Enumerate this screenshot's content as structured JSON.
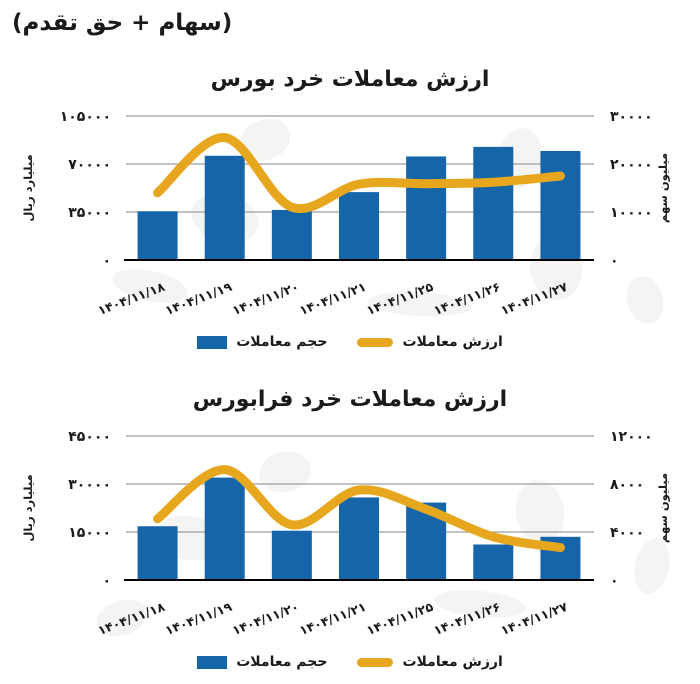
{
  "header": {
    "subtitle": "(سهام + حق تقدم)"
  },
  "legend": {
    "volume_label": "حجم معاملات",
    "value_label": "ارزش معاملات"
  },
  "colors": {
    "bar": "#1565A8",
    "line": "#E6A71E",
    "grid": "#9E9E9E",
    "axis": "#000000",
    "text": "#1A1A1A",
    "watermark": "#EDEDEA"
  },
  "chart_data": [
    {
      "type": "bar+line",
      "title": "ارزش معاملات خرد بورس",
      "categories": [
        "۱۴۰۴/۱۱/۱۸",
        "۱۴۰۴/۱۱/۱۹",
        "۱۴۰۴/۱۱/۲۰",
        "۱۴۰۴/۱۱/۲۱",
        "۱۴۰۴/۱۱/۲۵",
        "۱۴۰۴/۱۱/۲۶",
        "۱۴۰۴/۱۱/۲۷"
      ],
      "series": [
        {
          "name": "حجم معاملات",
          "type": "bar",
          "axis": "left",
          "values": [
            35500,
            76000,
            36500,
            49500,
            75500,
            82500,
            79500
          ]
        },
        {
          "name": "ارزش معاملات",
          "type": "line",
          "axis": "right",
          "values": [
            14000,
            25500,
            11000,
            15800,
            15900,
            16200,
            17500
          ]
        }
      ],
      "left_axis": {
        "label": "میلیارد ریال",
        "max": 105000,
        "ticks": [
          0,
          35000,
          70000,
          105000
        ],
        "tick_labels": [
          "۰",
          "۳۵۰۰۰",
          "۷۰۰۰۰",
          "۱۰۵۰۰۰"
        ]
      },
      "right_axis": {
        "label": "میلیون سهم",
        "max": 30000,
        "ticks": [
          0,
          10000,
          20000,
          30000
        ],
        "tick_labels": [
          "۰",
          "۱۰۰۰۰",
          "۲۰۰۰۰",
          "۳۰۰۰۰"
        ]
      },
      "grid": true,
      "legend_position": "bottom"
    },
    {
      "type": "bar+line",
      "title": "ارزش معاملات خرد فرابورس",
      "categories": [
        "۱۴۰۴/۱۱/۱۸",
        "۱۴۰۴/۱۱/۱۹",
        "۱۴۰۴/۱۱/۲۰",
        "۱۴۰۴/۱۱/۲۱",
        "۱۴۰۴/۱۱/۲۵",
        "۱۴۰۴/۱۱/۲۶",
        "۱۴۰۴/۱۱/۲۷"
      ],
      "series": [
        {
          "name": "حجم معاملات",
          "type": "bar",
          "axis": "left",
          "values": [
            16800,
            32000,
            15400,
            25800,
            24200,
            11100,
            13500
          ]
        },
        {
          "name": "ارزش معاملات",
          "type": "line",
          "axis": "right",
          "values": [
            5100,
            9200,
            4600,
            7500,
            5900,
            3600,
            2700
          ]
        }
      ],
      "left_axis": {
        "label": "میلیارد ریال",
        "max": 45000,
        "ticks": [
          0,
          15000,
          30000,
          45000
        ],
        "tick_labels": [
          "۰",
          "۱۵۰۰۰",
          "۳۰۰۰۰",
          "۴۵۰۰۰"
        ]
      },
      "right_axis": {
        "label": "میلیون سهم",
        "max": 12000,
        "ticks": [
          0,
          4000,
          8000,
          12000
        ],
        "tick_labels": [
          "۰",
          "۴۰۰۰",
          "۸۰۰۰",
          "۱۲۰۰۰"
        ]
      },
      "grid": true,
      "legend_position": "bottom"
    }
  ]
}
